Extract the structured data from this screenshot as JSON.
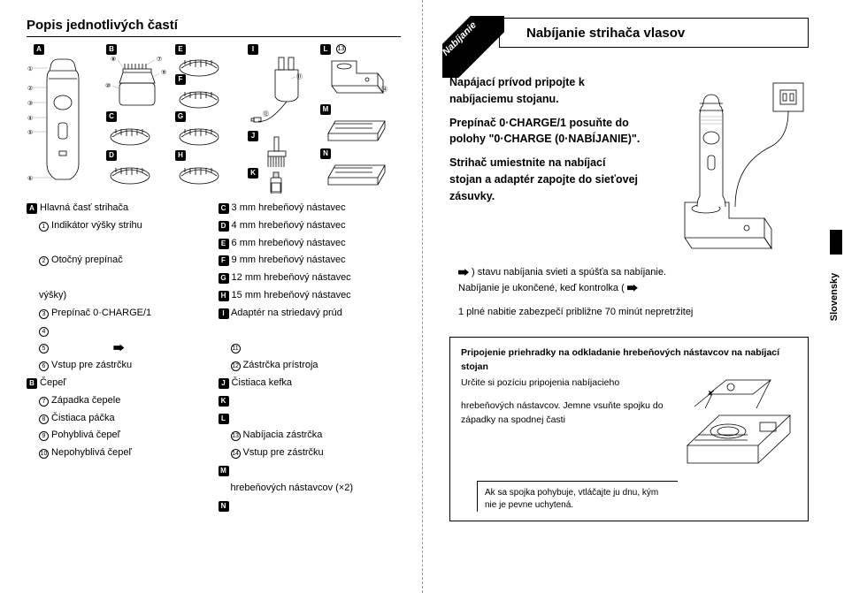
{
  "left": {
    "title": "Popis jednotlivých častí",
    "letters": [
      "A",
      "B",
      "C",
      "D",
      "E",
      "F",
      "G",
      "H",
      "I",
      "J",
      "K",
      "L",
      "M",
      "N"
    ],
    "parts_col1": [
      {
        "type": "L",
        "mark": "A",
        "text": "Hlavná časť strihača"
      },
      {
        "type": "C",
        "mark": "1",
        "text": "Indikátor výšky strihu",
        "indent": true
      },
      {
        "type": "blank"
      },
      {
        "type": "C",
        "mark": "2",
        "text": "Otočný prepínač",
        "indent": true
      },
      {
        "type": "blank"
      },
      {
        "type": "plain",
        "text": "výšky)",
        "indent": true
      },
      {
        "type": "C",
        "mark": "3",
        "text": "Prepínač 0·CHARGE/1",
        "indent": true
      },
      {
        "type": "C",
        "mark": "4",
        "text": "",
        "indent": true
      },
      {
        "type": "C",
        "mark": "5",
        "text": "",
        "indent": true,
        "plug": true
      },
      {
        "type": "C",
        "mark": "6",
        "text": "Vstup pre zástrčku",
        "indent": true
      },
      {
        "type": "L",
        "mark": "B",
        "text": "Čepeľ"
      },
      {
        "type": "C",
        "mark": "7",
        "text": "Západka čepele",
        "indent": true
      },
      {
        "type": "C",
        "mark": "8",
        "text": "Čistiaca páčka",
        "indent": true
      },
      {
        "type": "C",
        "mark": "9",
        "text": "Pohyblivá čepeľ",
        "indent": true
      },
      {
        "type": "C",
        "mark": "10",
        "text": "Nepohyblivá čepeľ",
        "indent": true
      }
    ],
    "parts_col2": [
      {
        "type": "L",
        "mark": "C",
        "text": "3 mm hrebeňový nástavec"
      },
      {
        "type": "L",
        "mark": "D",
        "text": "4 mm hrebeňový nástavec"
      },
      {
        "type": "L",
        "mark": "E",
        "text": "6 mm hrebeňový nástavec"
      },
      {
        "type": "L",
        "mark": "F",
        "text": "9 mm hrebeňový nástavec"
      },
      {
        "type": "L",
        "mark": "G",
        "text": "12 mm hrebeňový nástavec"
      },
      {
        "type": "L",
        "mark": "H",
        "text": "15 mm hrebeňový nástavec"
      },
      {
        "type": "L",
        "mark": "I",
        "text": "Adaptér na striedavý prúd"
      },
      {
        "type": "blank"
      },
      {
        "type": "C",
        "mark": "11",
        "text": "",
        "indent": true
      },
      {
        "type": "C",
        "mark": "12",
        "text": "Zástrčka prístroja",
        "indent": true
      },
      {
        "type": "L",
        "mark": "J",
        "text": "Čistiaca kefka"
      },
      {
        "type": "L",
        "mark": "K",
        "text": ""
      },
      {
        "type": "L",
        "mark": "L",
        "text": ""
      },
      {
        "type": "C",
        "mark": "13",
        "text": "Nabíjacia zástrčka",
        "indent": true
      },
      {
        "type": "C",
        "mark": "14",
        "text": "Vstup pre zástrčku",
        "indent": true
      },
      {
        "type": "L",
        "mark": "M",
        "text": ""
      },
      {
        "type": "plain",
        "text": "hrebeňových nástavcov (×2)",
        "indent": true
      },
      {
        "type": "L",
        "mark": "N",
        "text": ""
      }
    ]
  },
  "right": {
    "ribbon": "Nabíjanie",
    "title": "Nabíjanie strihača vlasov",
    "step1": "Napájací prívod pripojte k nabíjaciemu stojanu.",
    "step2a": "Prepínač 0·CHARGE/1 posuňte do polohy \"0·CHARGE (0·NABÍJANIE)\".",
    "step3": "Strihač umiestnite na nabíjací stojan a adaptér zapojte do sieťovej zásuvky.",
    "note1_tail": " ) stavu nabíjania svieti a spúšťa sa nabíjanie.",
    "note1b": "Nabíjanie je ukončené, keď kontrolka (",
    "note2": "1 plné nabitie zabezpečí približne 70 minút nepretržitej",
    "lang": "Slovensky",
    "attach": {
      "hdr": "Pripojenie priehradky na odkladanie hrebeňových nástavcov na nabíjací stojan",
      "p1": "Určite si pozíciu pripojenia nabíjacieho",
      "p2": "hrebeňových nástavcov. Jemne vsuňte spojku do západky na spodnej časti",
      "note": "Ak sa spojka pohybuje, vtláčajte ju dnu, kým nie je pevne uchytená."
    }
  }
}
